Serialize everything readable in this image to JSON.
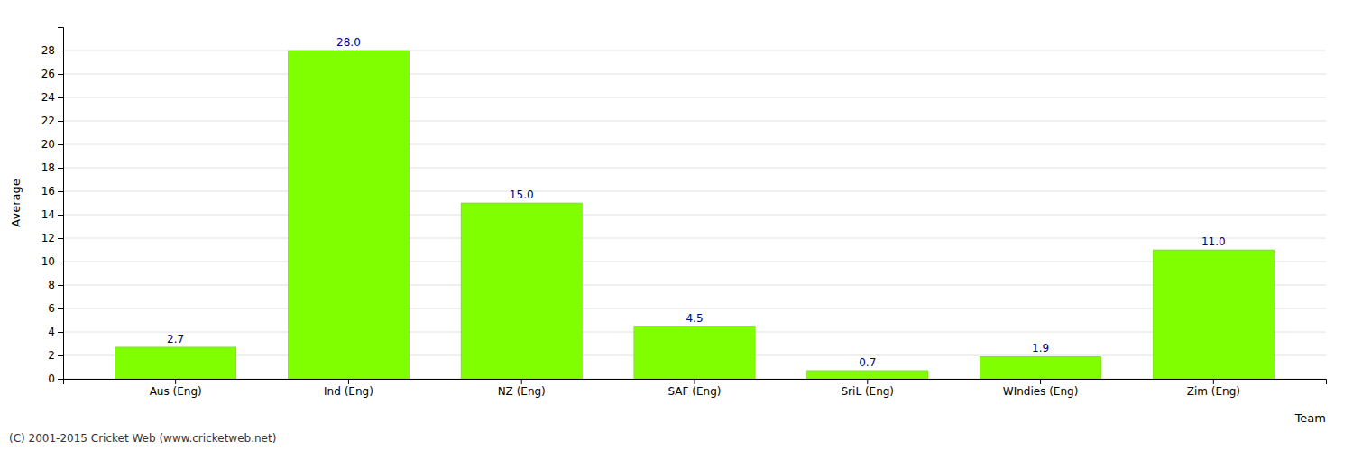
{
  "chart_data": {
    "type": "bar",
    "categories": [
      "Aus (Eng)",
      "Ind (Eng)",
      "NZ (Eng)",
      "SAF (Eng)",
      "SriL (Eng)",
      "WIndies (Eng)",
      "Zim (Eng)"
    ],
    "values": [
      2.7,
      28.0,
      15.0,
      4.5,
      0.7,
      1.9,
      11.0
    ],
    "value_labels": [
      "2.7",
      "28.0",
      "15.0",
      "4.5",
      "0.7",
      "1.9",
      "11.0"
    ],
    "data_labels": true,
    "color": "#7fff00",
    "ylabel": "Average",
    "xlabel": "Team",
    "footnote": "(C) 2001-2015 Cricket Web (www.cricketweb.net)",
    "ylim": [
      0,
      30
    ],
    "yticks": [
      0,
      2,
      4,
      6,
      8,
      10,
      12,
      14,
      16,
      18,
      20,
      22,
      24,
      26,
      28
    ],
    "grid": true
  }
}
